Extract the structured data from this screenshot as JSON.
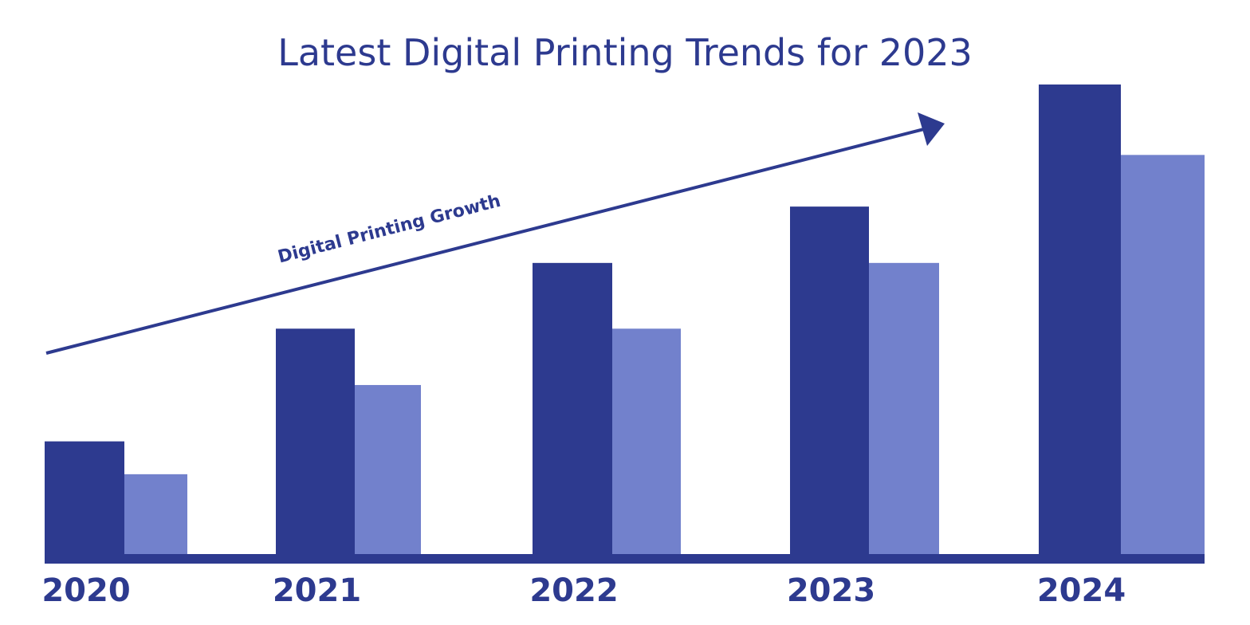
{
  "chart_data": {
    "type": "bar",
    "title": "Latest Digital Printing Trends for 2023",
    "xlabel": "",
    "ylabel": "",
    "categories": [
      "2020",
      "2021",
      "2022",
      "2023",
      "2024"
    ],
    "series": [
      {
        "values": [
          24,
          48,
          62,
          74,
          100
        ]
      },
      {
        "values": [
          17,
          36,
          48,
          62,
          85
        ]
      }
    ],
    "ylim": [
      0,
      100
    ],
    "y_axis_shown": false,
    "grid": false,
    "legend": "none",
    "annotation": {
      "text": "Digital Printing Growth",
      "type": "upward-arrow"
    },
    "colors": {
      "series_0": "#2d3a8f",
      "series_1": "#7281cc",
      "text": "#2d3a8f",
      "axis": "#2d3a8f"
    }
  }
}
